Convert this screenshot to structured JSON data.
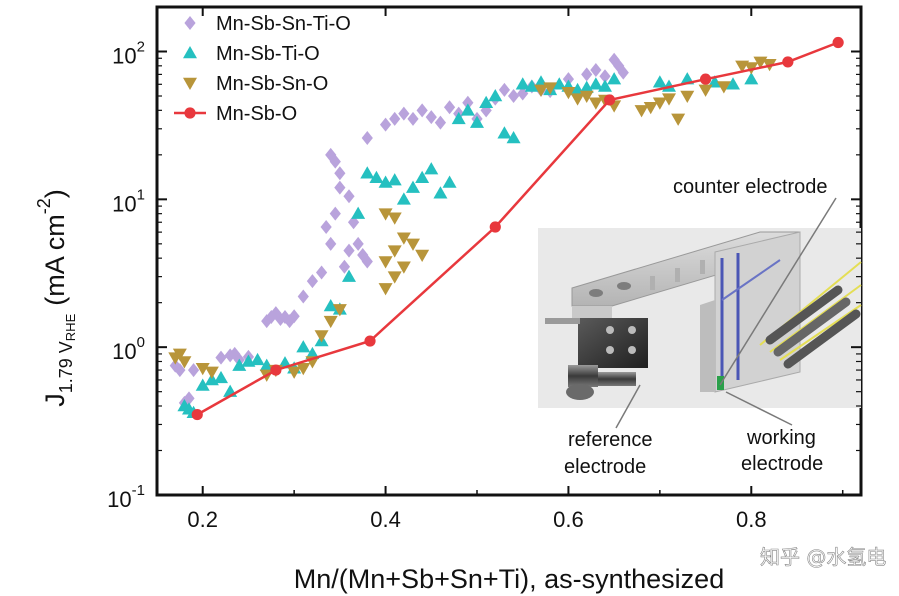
{
  "chart_data": {
    "type": "scatter",
    "title": "",
    "xlabel": "Mn/(Mn+Sb+Sn+Ti), as-synthesized",
    "ylabel": {
      "main": "J",
      "sub": "1.79 V",
      "sub2": "RHE",
      "unit": "(mA cm",
      "exp": "-2",
      "close": ")"
    },
    "xlim": [
      0.15,
      0.92
    ],
    "ylim": [
      0.1,
      200
    ],
    "yscale": "log",
    "xticks": [
      {
        "value": 0.2,
        "label": "0.2"
      },
      {
        "value": 0.4,
        "label": "0.4"
      },
      {
        "value": 0.6,
        "label": "0.6"
      },
      {
        "value": 0.8,
        "label": "0.8"
      }
    ],
    "yticks": [
      {
        "value": 0.1,
        "base": "10",
        "exp": "-1"
      },
      {
        "value": 1,
        "base": "10",
        "exp": "0"
      },
      {
        "value": 10,
        "base": "10",
        "exp": "1"
      },
      {
        "value": 100,
        "base": "10",
        "exp": "2"
      }
    ],
    "legend_position": "top-left",
    "series": [
      {
        "name": "Mn-Sb-Sn-Ti-O",
        "marker": "diamond",
        "color": "#b9a3dc",
        "points": [
          [
            0.17,
            0.75
          ],
          [
            0.175,
            0.7
          ],
          [
            0.18,
            0.42
          ],
          [
            0.185,
            0.45
          ],
          [
            0.19,
            0.7
          ],
          [
            0.22,
            0.85
          ],
          [
            0.23,
            0.88
          ],
          [
            0.235,
            0.9
          ],
          [
            0.24,
            0.82
          ],
          [
            0.25,
            0.86
          ],
          [
            0.27,
            1.5
          ],
          [
            0.275,
            1.6
          ],
          [
            0.28,
            1.7
          ],
          [
            0.285,
            1.55
          ],
          [
            0.29,
            1.6
          ],
          [
            0.295,
            1.5
          ],
          [
            0.3,
            1.62
          ],
          [
            0.31,
            2.2
          ],
          [
            0.32,
            2.8
          ],
          [
            0.33,
            3.2
          ],
          [
            0.335,
            6.5
          ],
          [
            0.34,
            5.0
          ],
          [
            0.345,
            8.0
          ],
          [
            0.35,
            15
          ],
          [
            0.355,
            3.5
          ],
          [
            0.36,
            4.5
          ],
          [
            0.365,
            7.0
          ],
          [
            0.37,
            5.0
          ],
          [
            0.375,
            4.2
          ],
          [
            0.38,
            3.8
          ],
          [
            0.34,
            20
          ],
          [
            0.345,
            18
          ],
          [
            0.35,
            12
          ],
          [
            0.36,
            10.5
          ],
          [
            0.38,
            26
          ],
          [
            0.4,
            32
          ],
          [
            0.41,
            35
          ],
          [
            0.42,
            38
          ],
          [
            0.43,
            35
          ],
          [
            0.44,
            40
          ],
          [
            0.45,
            36
          ],
          [
            0.46,
            33
          ],
          [
            0.47,
            42
          ],
          [
            0.48,
            38
          ],
          [
            0.49,
            45
          ],
          [
            0.5,
            35
          ],
          [
            0.51,
            40
          ],
          [
            0.52,
            48
          ],
          [
            0.53,
            55
          ],
          [
            0.54,
            50
          ],
          [
            0.55,
            52
          ],
          [
            0.56,
            58
          ],
          [
            0.57,
            55
          ],
          [
            0.58,
            54
          ],
          [
            0.6,
            65
          ],
          [
            0.62,
            70
          ],
          [
            0.63,
            75
          ],
          [
            0.64,
            68
          ],
          [
            0.65,
            88
          ],
          [
            0.655,
            80
          ],
          [
            0.66,
            72
          ]
        ]
      },
      {
        "name": "Mn-Sb-Ti-O",
        "marker": "triangle-up",
        "color": "#25c0c0",
        "points": [
          [
            0.18,
            0.4
          ],
          [
            0.185,
            0.38
          ],
          [
            0.19,
            0.36
          ],
          [
            0.2,
            0.55
          ],
          [
            0.21,
            0.6
          ],
          [
            0.22,
            0.62
          ],
          [
            0.23,
            0.5
          ],
          [
            0.24,
            0.75
          ],
          [
            0.25,
            0.8
          ],
          [
            0.26,
            0.82
          ],
          [
            0.27,
            0.75
          ],
          [
            0.29,
            0.78
          ],
          [
            0.3,
            0.72
          ],
          [
            0.31,
            1.0
          ],
          [
            0.32,
            0.9
          ],
          [
            0.33,
            1.1
          ],
          [
            0.34,
            1.9
          ],
          [
            0.35,
            1.8
          ],
          [
            0.36,
            3.0
          ],
          [
            0.37,
            8.0
          ],
          [
            0.38,
            15
          ],
          [
            0.39,
            14
          ],
          [
            0.4,
            13
          ],
          [
            0.41,
            13.5
          ],
          [
            0.42,
            10
          ],
          [
            0.43,
            12
          ],
          [
            0.44,
            14
          ],
          [
            0.45,
            16
          ],
          [
            0.46,
            11
          ],
          [
            0.47,
            13
          ],
          [
            0.48,
            35
          ],
          [
            0.49,
            40
          ],
          [
            0.5,
            33
          ],
          [
            0.51,
            45
          ],
          [
            0.52,
            50
          ],
          [
            0.53,
            28
          ],
          [
            0.54,
            26
          ],
          [
            0.55,
            60
          ],
          [
            0.56,
            58
          ],
          [
            0.57,
            62
          ],
          [
            0.58,
            55
          ],
          [
            0.59,
            60
          ],
          [
            0.6,
            58
          ],
          [
            0.61,
            55
          ],
          [
            0.62,
            57
          ],
          [
            0.63,
            60
          ],
          [
            0.64,
            58
          ],
          [
            0.65,
            65
          ],
          [
            0.7,
            62
          ],
          [
            0.71,
            58
          ],
          [
            0.73,
            65
          ],
          [
            0.76,
            62
          ],
          [
            0.78,
            60
          ],
          [
            0.8,
            65
          ]
        ]
      },
      {
        "name": "Mn-Sb-Sn-O",
        "marker": "triangle-down",
        "color": "#b8953a",
        "points": [
          [
            0.17,
            0.85
          ],
          [
            0.175,
            0.9
          ],
          [
            0.18,
            0.8
          ],
          [
            0.2,
            0.72
          ],
          [
            0.21,
            0.68
          ],
          [
            0.27,
            0.65
          ],
          [
            0.28,
            0.7
          ],
          [
            0.3,
            0.68
          ],
          [
            0.31,
            0.72
          ],
          [
            0.32,
            0.8
          ],
          [
            0.33,
            1.2
          ],
          [
            0.34,
            1.5
          ],
          [
            0.35,
            1.8
          ],
          [
            0.4,
            8.0
          ],
          [
            0.41,
            7.5
          ],
          [
            0.42,
            5.5
          ],
          [
            0.41,
            4.5
          ],
          [
            0.4,
            3.8
          ],
          [
            0.42,
            3.5
          ],
          [
            0.43,
            5.0
          ],
          [
            0.44,
            4.2
          ],
          [
            0.4,
            2.5
          ],
          [
            0.41,
            3.0
          ],
          [
            0.57,
            55
          ],
          [
            0.58,
            57
          ],
          [
            0.6,
            53
          ],
          [
            0.61,
            48
          ],
          [
            0.62,
            50
          ],
          [
            0.63,
            45
          ],
          [
            0.64,
            47
          ],
          [
            0.65,
            43
          ],
          [
            0.68,
            40
          ],
          [
            0.69,
            42
          ],
          [
            0.7,
            45
          ],
          [
            0.71,
            48
          ],
          [
            0.72,
            35
          ],
          [
            0.73,
            50
          ],
          [
            0.75,
            55
          ],
          [
            0.77,
            58
          ],
          [
            0.79,
            80
          ],
          [
            0.8,
            78
          ],
          [
            0.81,
            85
          ],
          [
            0.82,
            82
          ]
        ]
      },
      {
        "name": "Mn-Sb-O",
        "marker": "circle-line",
        "color": "#e8383d",
        "points": [
          [
            0.194,
            0.35
          ],
          [
            0.28,
            0.7
          ],
          [
            0.383,
            1.1
          ],
          [
            0.52,
            6.5
          ],
          [
            0.645,
            47
          ],
          [
            0.75,
            65
          ],
          [
            0.84,
            85
          ],
          [
            0.895,
            115
          ]
        ]
      }
    ],
    "inset": {
      "labels": {
        "counter": "counter electrode",
        "reference": [
          "reference",
          "electrode"
        ],
        "working": [
          "working",
          "electrode"
        ]
      }
    },
    "watermark": "知乎 @水氢电"
  }
}
